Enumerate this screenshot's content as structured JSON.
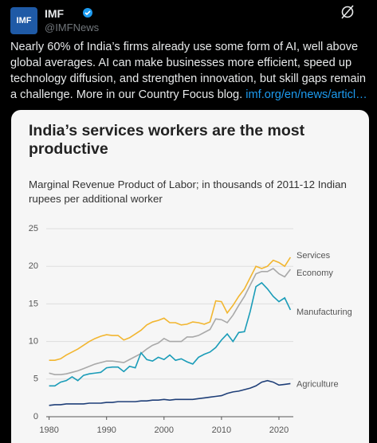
{
  "post": {
    "avatar_label": "IMF",
    "name": "IMF",
    "handle": "@IMFNews",
    "text": "Nearly 60% of India’s firms already use some form of AI, well above global averages. AI can make businesses more efficient, speed up technology diffusion, and strengthen innovation, but skill gaps remain a challenge. More in our Country Focus blog. ",
    "link": "imf.org/en/news/articl…"
  },
  "chart_data": {
    "type": "line",
    "title": "India’s services workers are the most productive",
    "subtitle": "Marginal Revenue Product of Labor; in thousands of 2011-12 Indian rupees per additional worker",
    "x": [
      1980,
      1981,
      1982,
      1983,
      1984,
      1985,
      1986,
      1987,
      1988,
      1989,
      1990,
      1991,
      1992,
      1993,
      1994,
      1995,
      1996,
      1997,
      1998,
      1999,
      2000,
      2001,
      2002,
      2003,
      2004,
      2005,
      2006,
      2007,
      2008,
      2009,
      2010,
      2011,
      2012,
      2013,
      2014,
      2015,
      2016,
      2017,
      2018,
      2019,
      2020,
      2021,
      2022
    ],
    "series": [
      {
        "name": "Services",
        "color": "#f2b630",
        "values": [
          7.5,
          7.5,
          7.7,
          8.2,
          8.6,
          9.0,
          9.5,
          10.0,
          10.4,
          10.7,
          10.9,
          10.8,
          10.8,
          10.2,
          10.5,
          11.0,
          11.5,
          12.2,
          12.6,
          12.8,
          13.1,
          12.5,
          12.5,
          12.2,
          12.3,
          12.6,
          12.5,
          12.3,
          12.6,
          15.4,
          15.3,
          13.8,
          14.8,
          16.0,
          17.0,
          18.5,
          20.0,
          19.7,
          20.0,
          20.8,
          20.5,
          20.0,
          21.2
        ]
      },
      {
        "name": "Economy",
        "color": "#a9a9a9",
        "values": [
          5.8,
          5.6,
          5.6,
          5.7,
          5.9,
          6.1,
          6.4,
          6.7,
          7.0,
          7.2,
          7.4,
          7.4,
          7.3,
          7.2,
          7.6,
          8.0,
          8.4,
          9.0,
          9.5,
          9.8,
          10.4,
          10.0,
          10.0,
          10.0,
          10.6,
          10.6,
          10.8,
          11.2,
          11.6,
          13.0,
          12.9,
          12.5,
          13.5,
          14.8,
          16.0,
          17.5,
          19.0,
          19.3,
          19.3,
          19.7,
          19.0,
          18.6,
          19.6
        ]
      },
      {
        "name": "Manufacturing",
        "color": "#1a9cb8",
        "values": [
          4.1,
          4.1,
          4.6,
          4.8,
          5.3,
          4.8,
          5.5,
          5.7,
          5.8,
          5.9,
          6.5,
          6.6,
          6.6,
          6.0,
          6.7,
          6.5,
          8.5,
          7.6,
          7.4,
          7.9,
          7.6,
          8.2,
          7.5,
          7.7,
          7.3,
          7.0,
          7.9,
          8.3,
          8.6,
          9.2,
          10.2,
          11.0,
          10.0,
          11.2,
          11.3,
          14.0,
          17.3,
          17.8,
          17.0,
          16.0,
          15.3,
          15.8,
          14.2
        ]
      },
      {
        "name": "Agriculture",
        "color": "#1f3f78",
        "values": [
          1.5,
          1.6,
          1.6,
          1.7,
          1.7,
          1.7,
          1.7,
          1.8,
          1.8,
          1.8,
          1.9,
          1.9,
          2.0,
          2.0,
          2.0,
          2.0,
          2.1,
          2.1,
          2.2,
          2.2,
          2.3,
          2.2,
          2.3,
          2.3,
          2.3,
          2.3,
          2.4,
          2.5,
          2.6,
          2.7,
          2.8,
          3.1,
          3.3,
          3.4,
          3.6,
          3.8,
          4.1,
          4.6,
          4.8,
          4.6,
          4.2,
          4.3,
          4.4
        ]
      }
    ],
    "xlim": [
      1979.5,
      2022.5
    ],
    "xticks": [
      1980,
      1990,
      2000,
      2010,
      2020
    ],
    "ylim": [
      0,
      25
    ],
    "yticks": [
      0,
      5,
      10,
      15,
      20,
      25
    ],
    "grid": true
  }
}
